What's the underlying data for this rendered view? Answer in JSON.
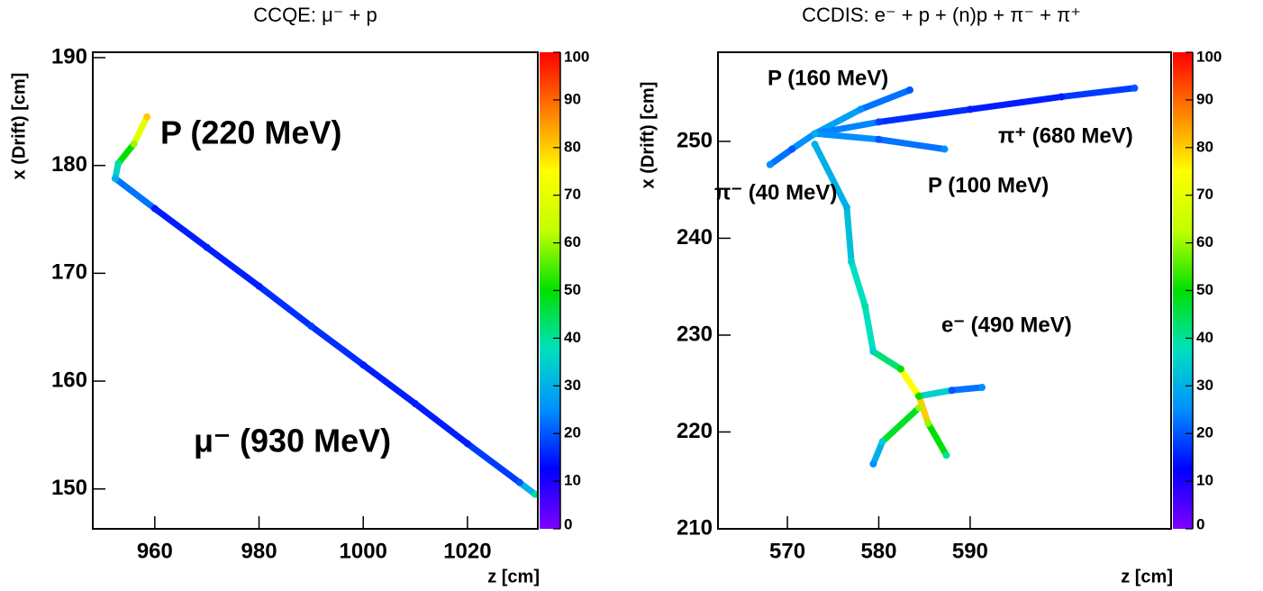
{
  "chart_data": [
    {
      "type": "event-display",
      "title": "CCQE: μ⁻ + p",
      "xlabel": "z [cm]",
      "ylabel": "x (Drift) [cm]",
      "xlim": [
        948.1,
        1033.5
      ],
      "xticks": [
        960,
        980,
        1000,
        1020
      ],
      "ylim": [
        146.3,
        190.5
      ],
      "yticks": [
        150,
        160,
        170,
        180,
        190
      ],
      "zlim": [
        0,
        100
      ],
      "zticks": [
        0,
        10,
        20,
        30,
        40,
        50,
        60,
        70,
        80,
        90,
        100
      ],
      "colormap": [
        "#8000ff",
        "#0000ff",
        "#0090ff",
        "#00e0c0",
        "#00e000",
        "#c0ff00",
        "#ffff00",
        "#ff8000",
        "#ff0000"
      ],
      "annotations": [
        "P (220 MeV)",
        "μ⁻ (930 MeV)"
      ],
      "tracks": [
        {
          "x": [
            952.4,
            960,
            970,
            980,
            990,
            1000,
            1010,
            1020,
            1030,
            1033
          ],
          "y": [
            178.8,
            176.0,
            172.4,
            168.8,
            165.1,
            161.5,
            157.9,
            154.2,
            150.6,
            149.5
          ],
          "values": [
            30,
            15,
            15,
            15,
            18,
            15,
            15,
            15,
            20,
            40
          ]
        },
        {
          "x": [
            952.4,
            953,
            956,
            958.5
          ],
          "y": [
            178.8,
            180.2,
            182,
            184.5
          ],
          "values": [
            30,
            40,
            60,
            80
          ]
        }
      ]
    },
    {
      "type": "event-display",
      "title": "CCDIS: e⁻ + p + (n)p + π⁻ + π⁺",
      "xlabel": "z [cm]",
      "ylabel": "x (Drift) [cm]",
      "xlim": [
        562.4,
        612
      ],
      "xticks": [
        570,
        580,
        590
      ],
      "ylim": [
        210,
        259.2
      ],
      "yticks": [
        210,
        220,
        230,
        240,
        250
      ],
      "zlim": [
        0,
        100
      ],
      "zticks": [
        0,
        10,
        20,
        30,
        40,
        50,
        60,
        70,
        80,
        90,
        100
      ],
      "colormap": [
        "#8000ff",
        "#0000ff",
        "#0090ff",
        "#00e0c0",
        "#00e000",
        "#c0ff00",
        "#ffff00",
        "#ff8000",
        "#ff0000"
      ],
      "annotations": [
        "P (160 MeV)",
        "π⁺ (680 MeV)",
        "π⁻ (40 MeV)",
        "P (100 MeV)",
        "e⁻ (490 MeV)"
      ],
      "tracks": [
        {
          "x": [
            573.0,
            578,
            583.4
          ],
          "y": [
            250.8,
            253.3,
            255.3
          ],
          "values": [
            30,
            25,
            20
          ]
        },
        {
          "x": [
            573.0,
            580,
            590,
            600,
            608
          ],
          "y": [
            250.8,
            252.0,
            253.3,
            254.6,
            255.5
          ],
          "values": [
            30,
            18,
            15,
            15,
            20
          ]
        },
        {
          "x": [
            573.0,
            580,
            587.2
          ],
          "y": [
            250.8,
            250.2,
            249.2
          ],
          "values": [
            30,
            20,
            25
          ]
        },
        {
          "x": [
            573.0,
            570.5,
            568.1
          ],
          "y": [
            250.8,
            249.2,
            247.6
          ],
          "values": [
            30,
            20,
            25
          ]
        },
        {
          "x": [
            573.0,
            576.5,
            577.0,
            578.5,
            579.4,
            582.4,
            584.4,
            585.4,
            587.4
          ],
          "y": [
            249.7,
            243.2,
            237.6,
            233.0,
            228.3,
            226.5,
            223.7,
            220.9,
            217.6
          ],
          "values": [
            30,
            30,
            35,
            40,
            35,
            50,
            100,
            60,
            40
          ]
        },
        {
          "x": [
            584.4,
            580.4,
            579.4
          ],
          "y": [
            222.5,
            219.0,
            216.7
          ],
          "values": [
            60,
            35,
            25
          ]
        },
        {
          "x": [
            584.4,
            588,
            591.3
          ],
          "y": [
            223.7,
            224.3,
            224.6
          ],
          "values": [
            50,
            20,
            25
          ]
        }
      ]
    }
  ]
}
